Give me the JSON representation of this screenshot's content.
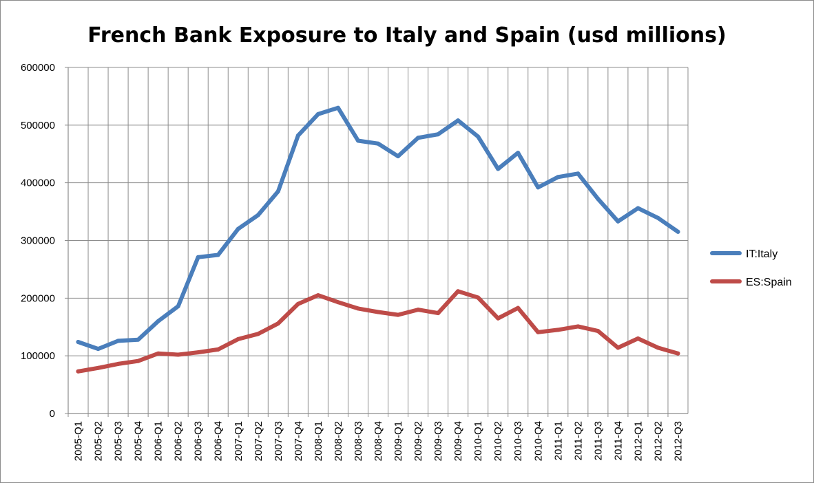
{
  "chart_data": {
    "type": "line",
    "title": "French Bank Exposure to Italy and Spain (usd millions)",
    "xlabel": "",
    "ylabel": "",
    "ylim": [
      0,
      600000
    ],
    "yticks": [
      "0",
      "100000",
      "200000",
      "300000",
      "400000",
      "500000",
      "600000"
    ],
    "grid": true,
    "legend_position": "right",
    "categories": [
      "2005-Q1",
      "2005-Q2",
      "2005-Q3",
      "2005-Q4",
      "2006-Q1",
      "2006-Q2",
      "2006-Q3",
      "2006-Q4",
      "2007-Q1",
      "2007-Q2",
      "2007-Q3",
      "2007-Q4",
      "2008-Q1",
      "2008-Q2",
      "2008-Q3",
      "2008-Q4",
      "2009-Q1",
      "2009-Q2",
      "2009-Q3",
      "2009-Q4",
      "2010-Q1",
      "2010-Q2",
      "2010-Q3",
      "2010-Q4",
      "2011-Q1",
      "2011-Q2",
      "2011-Q3",
      "2011-Q4",
      "2012-Q1",
      "2012-Q2",
      "2012-Q3"
    ],
    "series": [
      {
        "name": "IT:Italy",
        "color": "#4a7ebb",
        "values": [
          124000,
          112000,
          126000,
          128000,
          160000,
          186000,
          271000,
          275000,
          320000,
          344000,
          385000,
          482000,
          519000,
          530000,
          473000,
          468000,
          446000,
          478000,
          484000,
          508000,
          480000,
          424000,
          452000,
          392000,
          410000,
          416000,
          372000,
          333000,
          356000,
          339000,
          315000
        ]
      },
      {
        "name": "ES:Spain",
        "color": "#be4b48",
        "values": [
          73000,
          79000,
          86000,
          91000,
          104000,
          102000,
          106000,
          111000,
          129000,
          138000,
          156000,
          190000,
          205000,
          193000,
          182000,
          176000,
          171000,
          180000,
          174000,
          212000,
          201000,
          165000,
          183000,
          141000,
          145000,
          151000,
          143000,
          114000,
          130000,
          114000,
          104000
        ]
      }
    ]
  }
}
